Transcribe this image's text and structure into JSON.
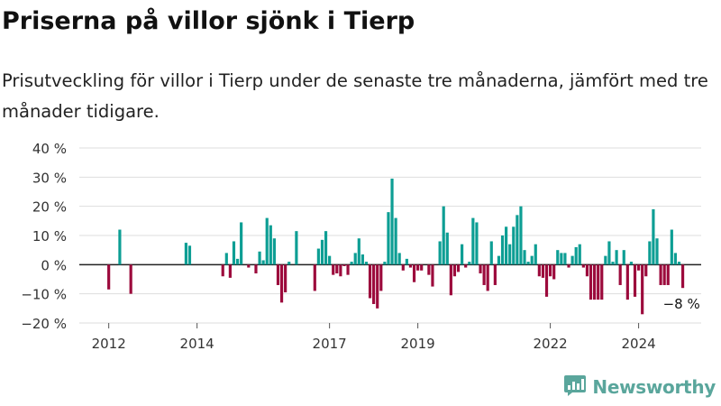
{
  "title": "Priserna på villor sjönk i Tierp",
  "subtitle": "Prisutveckling för villor i Tierp under de senaste tre månaderna, jämfört med tre månader tidigare.",
  "brand": {
    "name": "Newsworthy",
    "icon": "newsworthy-logo-icon"
  },
  "colors": {
    "positive": "#0d9e94",
    "negative": "#9c0a3c",
    "axis": "#222222",
    "grid": "#dddddd"
  },
  "chart_data": {
    "type": "bar",
    "title": "",
    "xlabel": "",
    "ylabel": "",
    "ylim": [
      -20,
      40
    ],
    "yticks": [
      -20,
      -10,
      0,
      10,
      20,
      30,
      40
    ],
    "ytick_labels": [
      "−20 %",
      "−10 %",
      "0 %",
      "10 %",
      "20 %",
      "30 %",
      "40 %"
    ],
    "grid": true,
    "xlim": [
      "2011-05",
      "2025-06"
    ],
    "xticks": [
      {
        "x": "2012-01",
        "label": "2012"
      },
      {
        "x": "2014-01",
        "label": "2014"
      },
      {
        "x": "2017-01",
        "label": "2017"
      },
      {
        "x": "2019-01",
        "label": "2019"
      },
      {
        "x": "2022-01",
        "label": "2022"
      },
      {
        "x": "2024-01",
        "label": "2024"
      }
    ],
    "series": [
      {
        "values": [
          {
            "x": "2012-01",
            "y": -8.5
          },
          {
            "x": "2012-04",
            "y": 12
          },
          {
            "x": "2012-07",
            "y": -10
          },
          {
            "x": "2013-10",
            "y": 7.5
          },
          {
            "x": "2013-11",
            "y": 6.5
          },
          {
            "x": "2014-08",
            "y": -4
          },
          {
            "x": "2014-09",
            "y": 4
          },
          {
            "x": "2014-10",
            "y": -4.5
          },
          {
            "x": "2014-11",
            "y": 8
          },
          {
            "x": "2014-12",
            "y": 2
          },
          {
            "x": "2015-01",
            "y": 14.5
          },
          {
            "x": "2015-03",
            "y": -1
          },
          {
            "x": "2015-05",
            "y": -3
          },
          {
            "x": "2015-06",
            "y": 4.5
          },
          {
            "x": "2015-07",
            "y": 1.5
          },
          {
            "x": "2015-08",
            "y": 16
          },
          {
            "x": "2015-09",
            "y": 13.5
          },
          {
            "x": "2015-10",
            "y": 9
          },
          {
            "x": "2015-11",
            "y": -7
          },
          {
            "x": "2015-12",
            "y": -13
          },
          {
            "x": "2016-01",
            "y": -9.5
          },
          {
            "x": "2016-02",
            "y": 1
          },
          {
            "x": "2016-04",
            "y": 11.5
          },
          {
            "x": "2016-09",
            "y": -9
          },
          {
            "x": "2016-10",
            "y": 5.5
          },
          {
            "x": "2016-11",
            "y": 8.5
          },
          {
            "x": "2016-12",
            "y": 11.5
          },
          {
            "x": "2017-01",
            "y": 3
          },
          {
            "x": "2017-02",
            "y": -3.5
          },
          {
            "x": "2017-03",
            "y": -3
          },
          {
            "x": "2017-04",
            "y": -4
          },
          {
            "x": "2017-05",
            "y": -0.5
          },
          {
            "x": "2017-06",
            "y": -3.5
          },
          {
            "x": "2017-07",
            "y": 1
          },
          {
            "x": "2017-08",
            "y": 4
          },
          {
            "x": "2017-09",
            "y": 9
          },
          {
            "x": "2017-10",
            "y": 3.5
          },
          {
            "x": "2017-11",
            "y": 1
          },
          {
            "x": "2017-12",
            "y": -11.5
          },
          {
            "x": "2018-01",
            "y": -13.5
          },
          {
            "x": "2018-02",
            "y": -15
          },
          {
            "x": "2018-03",
            "y": -9
          },
          {
            "x": "2018-04",
            "y": 1
          },
          {
            "x": "2018-05",
            "y": 18
          },
          {
            "x": "2018-06",
            "y": 29.5
          },
          {
            "x": "2018-07",
            "y": 16
          },
          {
            "x": "2018-08",
            "y": 4
          },
          {
            "x": "2018-09",
            "y": -2
          },
          {
            "x": "2018-10",
            "y": 2
          },
          {
            "x": "2018-11",
            "y": -1
          },
          {
            "x": "2018-12",
            "y": -6
          },
          {
            "x": "2019-01",
            "y": -2
          },
          {
            "x": "2019-02",
            "y": -2
          },
          {
            "x": "2019-04",
            "y": -3.5
          },
          {
            "x": "2019-05",
            "y": -7.5
          },
          {
            "x": "2019-07",
            "y": 8
          },
          {
            "x": "2019-08",
            "y": 20
          },
          {
            "x": "2019-09",
            "y": 11
          },
          {
            "x": "2019-10",
            "y": -10.5
          },
          {
            "x": "2019-11",
            "y": -4
          },
          {
            "x": "2019-12",
            "y": -2.5
          },
          {
            "x": "2020-01",
            "y": 7
          },
          {
            "x": "2020-02",
            "y": -1
          },
          {
            "x": "2020-03",
            "y": 1
          },
          {
            "x": "2020-04",
            "y": 16
          },
          {
            "x": "2020-05",
            "y": 14.5
          },
          {
            "x": "2020-06",
            "y": -3
          },
          {
            "x": "2020-07",
            "y": -7
          },
          {
            "x": "2020-08",
            "y": -9
          },
          {
            "x": "2020-09",
            "y": 8
          },
          {
            "x": "2020-10",
            "y": -7
          },
          {
            "x": "2020-11",
            "y": 3
          },
          {
            "x": "2020-12",
            "y": 10
          },
          {
            "x": "2021-01",
            "y": 13
          },
          {
            "x": "2021-02",
            "y": 7
          },
          {
            "x": "2021-03",
            "y": 13
          },
          {
            "x": "2021-04",
            "y": 17
          },
          {
            "x": "2021-05",
            "y": 20
          },
          {
            "x": "2021-06",
            "y": 5
          },
          {
            "x": "2021-07",
            "y": 1
          },
          {
            "x": "2021-08",
            "y": 3
          },
          {
            "x": "2021-09",
            "y": 7
          },
          {
            "x": "2021-10",
            "y": -4
          },
          {
            "x": "2021-11",
            "y": -4.5
          },
          {
            "x": "2021-12",
            "y": -11
          },
          {
            "x": "2022-01",
            "y": -4
          },
          {
            "x": "2022-02",
            "y": -5
          },
          {
            "x": "2022-03",
            "y": 5
          },
          {
            "x": "2022-04",
            "y": 4
          },
          {
            "x": "2022-05",
            "y": 4
          },
          {
            "x": "2022-06",
            "y": -1
          },
          {
            "x": "2022-07",
            "y": 3
          },
          {
            "x": "2022-08",
            "y": 6
          },
          {
            "x": "2022-09",
            "y": 7
          },
          {
            "x": "2022-10",
            "y": -1
          },
          {
            "x": "2022-11",
            "y": -4
          },
          {
            "x": "2022-12",
            "y": -12
          },
          {
            "x": "2023-01",
            "y": -12
          },
          {
            "x": "2023-02",
            "y": -12
          },
          {
            "x": "2023-03",
            "y": -12
          },
          {
            "x": "2023-04",
            "y": 3
          },
          {
            "x": "2023-05",
            "y": 8
          },
          {
            "x": "2023-06",
            "y": 1
          },
          {
            "x": "2023-07",
            "y": 5
          },
          {
            "x": "2023-08",
            "y": -7
          },
          {
            "x": "2023-09",
            "y": 5
          },
          {
            "x": "2023-10",
            "y": -12
          },
          {
            "x": "2023-11",
            "y": 1
          },
          {
            "x": "2023-12",
            "y": -11
          },
          {
            "x": "2024-01",
            "y": -2
          },
          {
            "x": "2024-02",
            "y": -17
          },
          {
            "x": "2024-03",
            "y": -4
          },
          {
            "x": "2024-04",
            "y": 8
          },
          {
            "x": "2024-05",
            "y": 19
          },
          {
            "x": "2024-06",
            "y": 9
          },
          {
            "x": "2024-07",
            "y": -7
          },
          {
            "x": "2024-08",
            "y": -7
          },
          {
            "x": "2024-09",
            "y": -7
          },
          {
            "x": "2024-10",
            "y": 12
          },
          {
            "x": "2024-11",
            "y": 4
          },
          {
            "x": "2024-12",
            "y": 1
          },
          {
            "x": "2025-01",
            "y": -8
          }
        ]
      }
    ],
    "annotations": [
      {
        "x": "2025-01",
        "y": -8,
        "text": "−8 %"
      }
    ]
  }
}
